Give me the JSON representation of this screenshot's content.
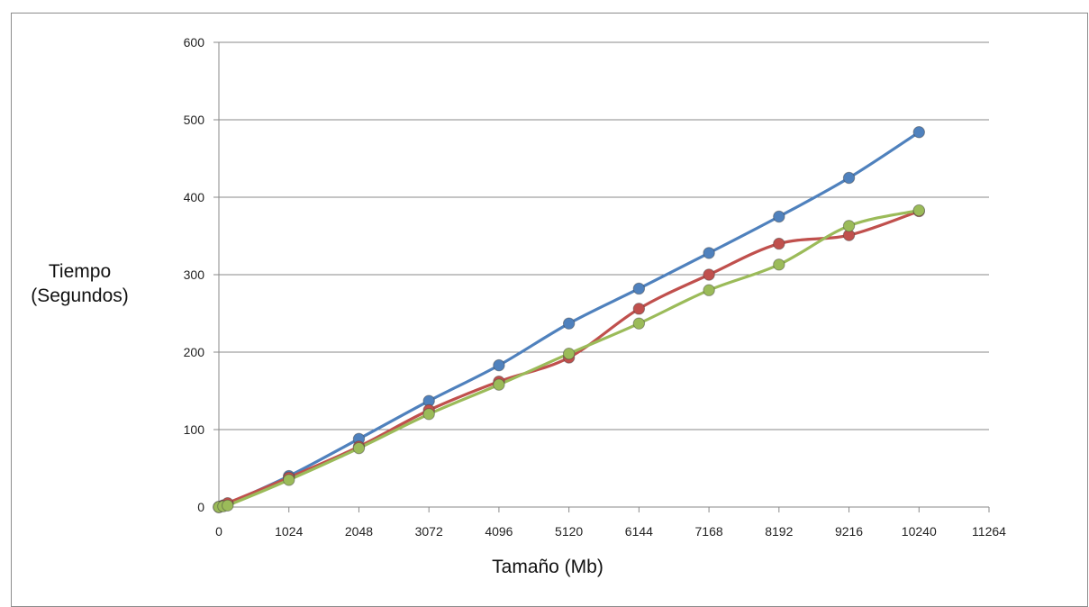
{
  "chart_data": {
    "type": "line",
    "title": "",
    "xlabel": "Tamaño (Mb)",
    "ylabel_lines": [
      "Tiempo",
      "(Segundos)"
    ],
    "xlim": [
      0,
      11264
    ],
    "ylim": [
      0,
      600
    ],
    "xticks": [
      0,
      1024,
      2048,
      3072,
      4096,
      5120,
      6144,
      7168,
      8192,
      9216,
      10240,
      11264
    ],
    "yticks": [
      0,
      100,
      200,
      300,
      400,
      500,
      600
    ],
    "grid": "horizontal",
    "legend": "none",
    "series": [
      {
        "color": "#4f81bd",
        "x": [
          0,
          64,
          128,
          1024,
          2048,
          3072,
          4096,
          5120,
          6144,
          7168,
          8192,
          9216,
          10240
        ],
        "y": [
          0,
          2,
          4,
          40,
          88,
          137,
          183,
          237,
          282,
          328,
          375,
          425,
          484
        ]
      },
      {
        "color": "#c0504d",
        "x": [
          0,
          64,
          128,
          1024,
          2048,
          3072,
          4096,
          5120,
          6144,
          7168,
          8192,
          9216,
          10240
        ],
        "y": [
          0,
          2,
          5,
          38,
          78,
          125,
          162,
          193,
          256,
          300,
          340,
          351,
          382
        ]
      },
      {
        "color": "#9bbb59",
        "x": [
          0,
          64,
          128,
          1024,
          2048,
          3072,
          4096,
          5120,
          6144,
          7168,
          8192,
          9216,
          10240
        ],
        "y": [
          0,
          1,
          2,
          35,
          76,
          120,
          158,
          198,
          237,
          280,
          313,
          363,
          383
        ]
      }
    ]
  }
}
